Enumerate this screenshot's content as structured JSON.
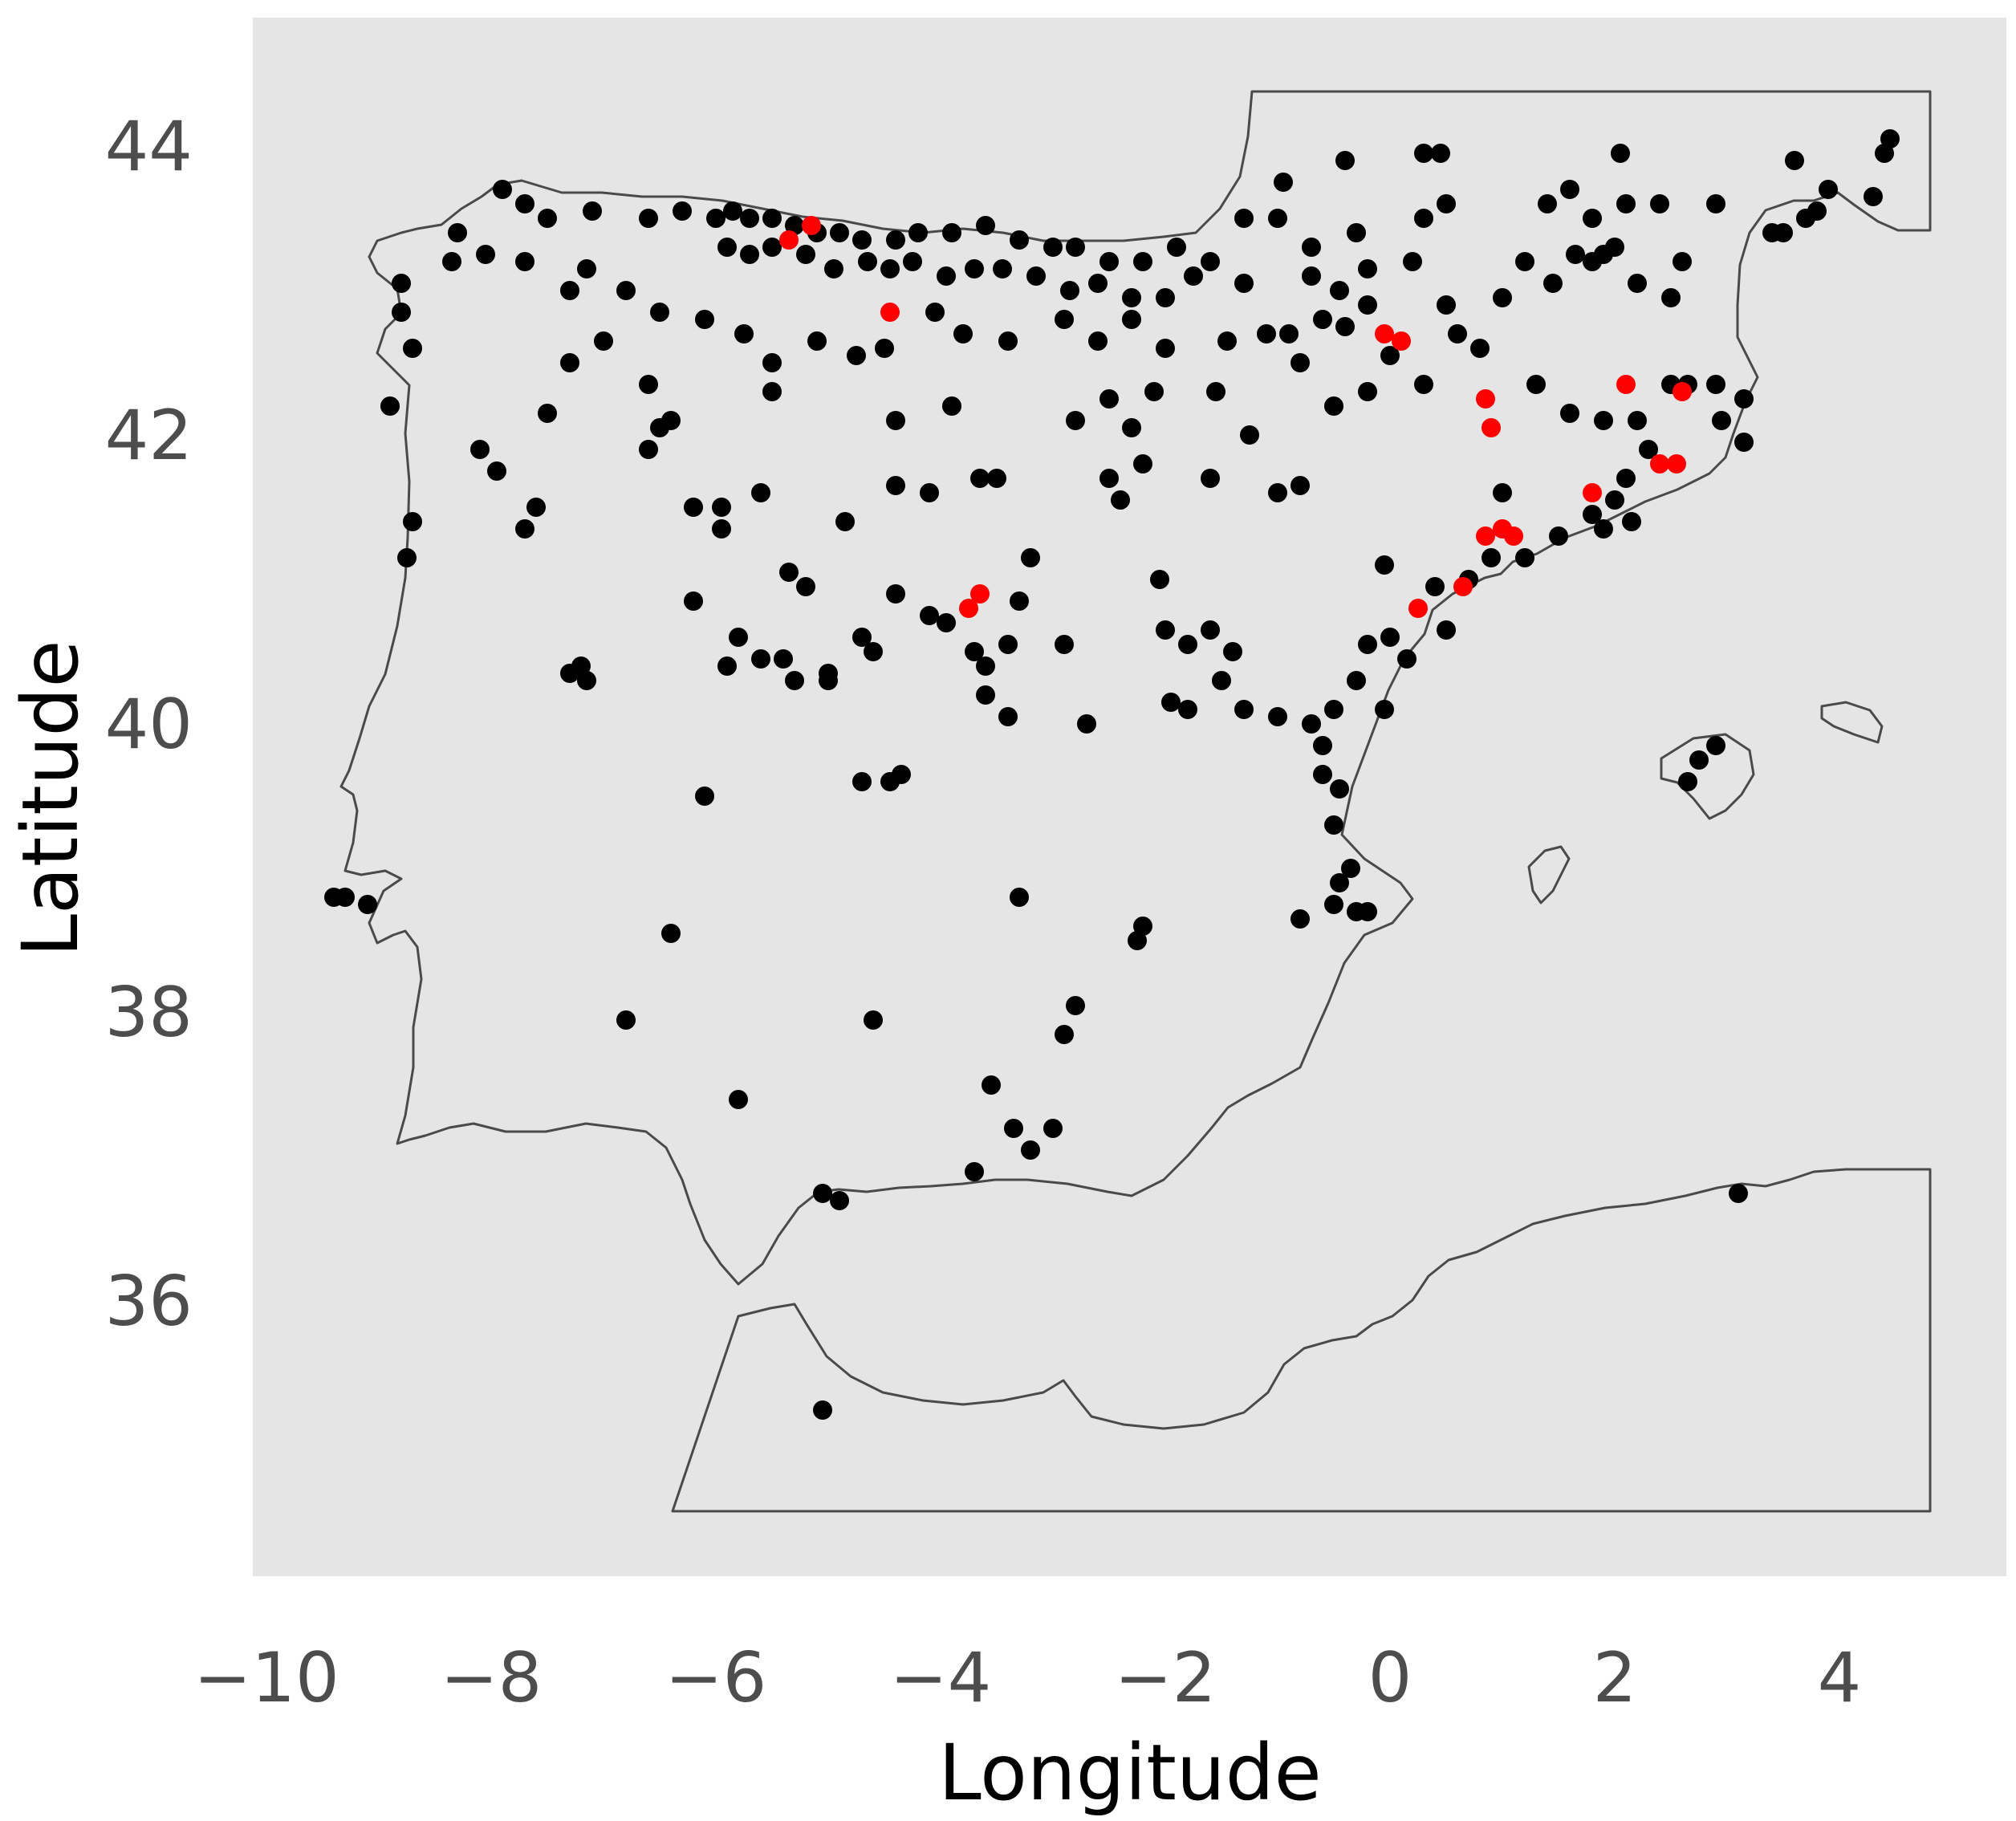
{
  "chart_data": {
    "type": "scatter",
    "title": "",
    "xlabel": "Longitude",
    "ylabel": "Latitude",
    "xlim": [
      -10,
      5
    ],
    "ylim": [
      34.2,
      44.7
    ],
    "x_ticks": [
      -10,
      -8,
      -6,
      -4,
      -2,
      0,
      2,
      4
    ],
    "y_ticks": [
      36,
      38,
      40,
      42,
      44
    ],
    "x_tick_labels": [
      "−10",
      "−8",
      "−6",
      "−4",
      "−2",
      "0",
      "2",
      "4"
    ],
    "y_tick_labels": [
      "36",
      "38",
      "40",
      "42",
      "44"
    ],
    "panel_background": "#e5e5e5",
    "grid": false,
    "legend": "none",
    "basemap": "Iberian Peninsula, Balearic Islands and North Africa coastline outline",
    "series": [
      {
        "color": "#000000",
        "points": [
          [
            -7.9,
            43.7
          ],
          [
            -7.7,
            43.6
          ],
          [
            -8.3,
            43.4
          ],
          [
            -7.5,
            43.5
          ],
          [
            -7.1,
            43.55
          ],
          [
            -6.6,
            43.5
          ],
          [
            -6.3,
            43.55
          ],
          [
            -6.0,
            43.5
          ],
          [
            -5.85,
            43.55
          ],
          [
            -5.7,
            43.5
          ],
          [
            -5.5,
            43.5
          ],
          [
            -5.3,
            43.45
          ],
          [
            -5.1,
            43.4
          ],
          [
            -4.9,
            43.4
          ],
          [
            -4.7,
            43.35
          ],
          [
            -4.4,
            43.35
          ],
          [
            -4.2,
            43.4
          ],
          [
            -3.9,
            43.4
          ],
          [
            -3.6,
            43.45
          ],
          [
            -3.3,
            43.35
          ],
          [
            -3.0,
            43.3
          ],
          [
            -2.8,
            43.3
          ],
          [
            -2.5,
            43.2
          ],
          [
            -2.2,
            43.2
          ],
          [
            -1.9,
            43.3
          ],
          [
            -1.6,
            43.2
          ],
          [
            -1.3,
            43.5
          ],
          [
            -1.0,
            43.5
          ],
          [
            -0.7,
            43.3
          ],
          [
            -0.3,
            43.4
          ],
          [
            0.3,
            43.5
          ],
          [
            0.5,
            43.6
          ],
          [
            1.4,
            43.6
          ],
          [
            1.6,
            43.7
          ],
          [
            1.8,
            43.5
          ],
          [
            2.1,
            43.6
          ],
          [
            2.4,
            43.6
          ],
          [
            2.9,
            43.6
          ],
          [
            3.5,
            43.4
          ],
          [
            3.8,
            43.55
          ],
          [
            3.9,
            43.7
          ],
          [
            4.3,
            43.65
          ],
          [
            4.4,
            43.95
          ],
          [
            4.45,
            44.05
          ],
          [
            0.45,
            43.95
          ],
          [
            0.3,
            43.95
          ],
          [
            -0.4,
            43.9
          ],
          [
            -0.95,
            43.75
          ],
          [
            2.05,
            43.95
          ],
          [
            3.6,
            43.9
          ],
          [
            -9.3,
            38.8
          ],
          [
            -9.1,
            38.75
          ],
          [
            -8.8,
            43.05
          ],
          [
            -8.8,
            42.85
          ],
          [
            -8.7,
            42.6
          ],
          [
            -8.9,
            42.2
          ],
          [
            -8.7,
            41.4
          ],
          [
            -8.75,
            41.15
          ],
          [
            -8.1,
            41.9
          ],
          [
            -7.95,
            41.75
          ],
          [
            -7.6,
            41.5
          ],
          [
            -7.7,
            41.35
          ],
          [
            -7.2,
            40.4
          ],
          [
            -7.15,
            40.3
          ],
          [
            -7.3,
            40.35
          ],
          [
            -7.5,
            42.15
          ],
          [
            -7.3,
            42.5
          ],
          [
            -7.0,
            42.65
          ],
          [
            -6.6,
            42.35
          ],
          [
            -6.5,
            42.05
          ],
          [
            -6.4,
            42.1
          ],
          [
            -6.6,
            41.9
          ],
          [
            -6.2,
            41.5
          ],
          [
            -5.95,
            41.5
          ],
          [
            -5.95,
            41.35
          ],
          [
            -5.6,
            41.6
          ],
          [
            -5.35,
            41.05
          ],
          [
            -5.2,
            40.95
          ],
          [
            -6.2,
            40.85
          ],
          [
            -5.8,
            40.6
          ],
          [
            -5.6,
            40.45
          ],
          [
            -5.4,
            40.45
          ],
          [
            -5.3,
            40.3
          ],
          [
            -5.9,
            40.4
          ],
          [
            -5.0,
            40.35
          ],
          [
            -5.5,
            42.5
          ],
          [
            -5.5,
            42.3
          ],
          [
            -5.0,
            40.3
          ],
          [
            -4.7,
            40.6
          ],
          [
            -4.6,
            40.5
          ],
          [
            -4.85,
            41.4
          ],
          [
            -4.4,
            41.65
          ],
          [
            -4.1,
            41.6
          ],
          [
            -4.4,
            42.1
          ],
          [
            -3.9,
            42.2
          ],
          [
            -3.65,
            41.7
          ],
          [
            -3.5,
            41.7
          ],
          [
            -4.4,
            40.9
          ],
          [
            -4.1,
            40.75
          ],
          [
            -3.95,
            40.7
          ],
          [
            -3.7,
            40.5
          ],
          [
            -3.6,
            40.4
          ],
          [
            -3.4,
            40.55
          ],
          [
            -3.6,
            40.2
          ],
          [
            -3.4,
            40.05
          ],
          [
            -3.3,
            40.85
          ],
          [
            -3.2,
            41.15
          ],
          [
            -2.9,
            40.55
          ],
          [
            -2.7,
            40.0
          ],
          [
            -2.8,
            42.1
          ],
          [
            -2.5,
            42.25
          ],
          [
            -2.3,
            42.05
          ],
          [
            -2.1,
            42.3
          ],
          [
            -2.5,
            41.7
          ],
          [
            -2.4,
            41.55
          ],
          [
            -2.2,
            41.8
          ],
          [
            -2.05,
            41.0
          ],
          [
            -2.0,
            40.65
          ],
          [
            -1.8,
            40.55
          ],
          [
            -1.6,
            40.65
          ],
          [
            -1.4,
            40.5
          ],
          [
            -1.95,
            40.15
          ],
          [
            -1.8,
            40.1
          ],
          [
            -1.5,
            40.3
          ],
          [
            -1.3,
            40.1
          ],
          [
            -1.0,
            40.05
          ],
          [
            -0.7,
            40.0
          ],
          [
            -0.5,
            40.1
          ],
          [
            -0.3,
            40.3
          ],
          [
            -0.2,
            40.55
          ],
          [
            0.0,
            40.6
          ],
          [
            0.15,
            40.45
          ],
          [
            -0.05,
            40.1
          ],
          [
            0.4,
            40.95
          ],
          [
            -0.05,
            41.1
          ],
          [
            -1.6,
            41.7
          ],
          [
            -1.0,
            41.6
          ],
          [
            -0.8,
            41.65
          ],
          [
            -1.55,
            42.3
          ],
          [
            -1.25,
            42.0
          ],
          [
            -0.5,
            42.2
          ],
          [
            -0.2,
            42.3
          ],
          [
            0.0,
            42.55
          ],
          [
            0.3,
            42.35
          ],
          [
            0.6,
            42.7
          ],
          [
            0.8,
            42.6
          ],
          [
            1.3,
            42.35
          ],
          [
            1.6,
            42.15
          ],
          [
            1.9,
            42.1
          ],
          [
            2.2,
            42.1
          ],
          [
            2.5,
            42.35
          ],
          [
            2.65,
            42.35
          ],
          [
            2.9,
            42.35
          ],
          [
            3.15,
            42.25
          ],
          [
            2.95,
            42.1
          ],
          [
            3.15,
            41.95
          ],
          [
            2.3,
            41.9
          ],
          [
            2.1,
            41.7
          ],
          [
            2.0,
            41.55
          ],
          [
            1.8,
            41.45
          ],
          [
            1.5,
            41.3
          ],
          [
            1.9,
            41.35
          ],
          [
            2.15,
            41.4
          ],
          [
            1.2,
            41.15
          ],
          [
            0.9,
            41.15
          ],
          [
            1.0,
            41.6
          ],
          [
            0.7,
            41.0
          ],
          [
            0.5,
            40.65
          ],
          [
            -0.6,
            39.85
          ],
          [
            -0.45,
            39.55
          ],
          [
            -0.6,
            39.65
          ],
          [
            -0.5,
            39.3
          ],
          [
            -0.35,
            39.0
          ],
          [
            -0.45,
            38.9
          ],
          [
            -0.3,
            38.7
          ],
          [
            -0.2,
            38.7
          ],
          [
            -0.5,
            38.75
          ],
          [
            -0.8,
            38.65
          ],
          [
            -2.25,
            38.5
          ],
          [
            -2.2,
            38.6
          ],
          [
            -3.3,
            38.8
          ],
          [
            -2.8,
            38.05
          ],
          [
            -2.9,
            37.85
          ],
          [
            -3.55,
            37.5
          ],
          [
            -3.35,
            37.2
          ],
          [
            -3.2,
            37.05
          ],
          [
            -3.0,
            37.2
          ],
          [
            -3.7,
            36.9
          ],
          [
            -4.6,
            37.95
          ],
          [
            -4.7,
            39.6
          ],
          [
            -4.35,
            39.65
          ],
          [
            -4.45,
            39.6
          ],
          [
            -6.1,
            39.5
          ],
          [
            -6.4,
            38.55
          ],
          [
            -6.8,
            37.95
          ],
          [
            -5.8,
            37.4
          ],
          [
            -5.05,
            36.75
          ],
          [
            -4.9,
            36.7
          ],
          [
            -5.05,
            35.25
          ],
          [
            3.1,
            36.75
          ],
          [
            2.75,
            39.75
          ],
          [
            2.65,
            39.6
          ],
          [
            2.9,
            39.85
          ],
          [
            -1.3,
            43.05
          ],
          [
            -0.6,
            42.8
          ],
          [
            -0.4,
            42.75
          ],
          [
            -0.2,
            42.9
          ],
          [
            0.5,
            42.9
          ],
          [
            1.0,
            42.95
          ],
          [
            1.45,
            43.05
          ],
          [
            1.8,
            43.2
          ],
          [
            2.2,
            43.05
          ],
          [
            2.0,
            43.3
          ],
          [
            2.5,
            42.95
          ],
          [
            -0.8,
            42.5
          ],
          [
            -0.9,
            42.7
          ],
          [
            -1.1,
            42.7
          ],
          [
            -1.45,
            42.65
          ],
          [
            -2.0,
            42.6
          ],
          [
            -2.3,
            42.8
          ],
          [
            -2.6,
            42.65
          ],
          [
            -2.9,
            42.8
          ],
          [
            -3.4,
            42.65
          ],
          [
            -3.8,
            42.7
          ],
          [
            -4.05,
            42.85
          ],
          [
            -4.5,
            42.6
          ],
          [
            -4.75,
            42.55
          ],
          [
            -5.1,
            42.65
          ],
          [
            -5.75,
            42.7
          ],
          [
            -6.1,
            42.8
          ],
          [
            -6.5,
            42.85
          ],
          [
            -6.8,
            43.0
          ],
          [
            -7.15,
            43.15
          ],
          [
            -7.3,
            43.0
          ],
          [
            -7.7,
            43.2
          ],
          [
            -8.05,
            43.25
          ],
          [
            -8.35,
            43.2
          ],
          [
            -5.9,
            43.3
          ],
          [
            -5.7,
            43.25
          ],
          [
            -5.5,
            43.3
          ],
          [
            -5.2,
            43.25
          ],
          [
            -4.95,
            43.15
          ],
          [
            -4.65,
            43.2
          ],
          [
            -4.45,
            43.15
          ],
          [
            -4.25,
            43.2
          ],
          [
            -3.95,
            43.1
          ],
          [
            -3.7,
            43.15
          ],
          [
            -3.45,
            43.15
          ],
          [
            -3.15,
            43.1
          ],
          [
            -2.85,
            43.0
          ],
          [
            -2.6,
            43.05
          ],
          [
            -2.3,
            42.95
          ],
          [
            -2.0,
            42.95
          ],
          [
            -1.75,
            43.1
          ],
          [
            -0.7,
            43.1
          ],
          [
            -0.45,
            43.0
          ],
          [
            -0.2,
            43.15
          ],
          [
            0.2,
            43.2
          ],
          [
            1.2,
            43.2
          ],
          [
            1.65,
            43.25
          ],
          [
            1.9,
            43.25
          ],
          [
            2.6,
            43.2
          ],
          [
            3.4,
            43.4
          ],
          [
            3.7,
            43.5
          ],
          [
            -9.4,
            38.8
          ]
        ]
      },
      {
        "color": "#ff0000",
        "points": [
          [
            -5.35,
            43.35
          ],
          [
            -5.15,
            43.45
          ],
          [
            -4.45,
            42.85
          ],
          [
            -0.05,
            42.7
          ],
          [
            0.1,
            42.65
          ],
          [
            0.85,
            42.25
          ],
          [
            0.9,
            42.05
          ],
          [
            2.1,
            42.35
          ],
          [
            2.6,
            42.3
          ],
          [
            1.8,
            41.6
          ],
          [
            2.4,
            41.8
          ],
          [
            2.55,
            41.8
          ],
          [
            0.85,
            41.3
          ],
          [
            1.0,
            41.35
          ],
          [
            1.1,
            41.3
          ],
          [
            0.65,
            40.95
          ],
          [
            0.25,
            40.8
          ],
          [
            -3.65,
            40.9
          ],
          [
            -3.75,
            40.8
          ]
        ]
      }
    ]
  }
}
